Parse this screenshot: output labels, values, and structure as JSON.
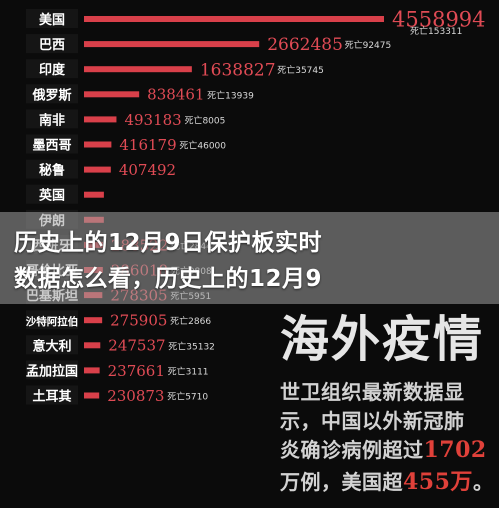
{
  "chart_data": {
    "type": "bar",
    "orientation": "horizontal",
    "title": "",
    "xlabel": "",
    "ylabel": "",
    "deaths_prefix": "死亡",
    "categories": [
      "美国",
      "巴西",
      "印度",
      "俄罗斯",
      "南非",
      "墨西哥",
      "秘鲁",
      "英国",
      "伊朗",
      "西班牙",
      "哥伦比亚",
      "巴基斯坦",
      "沙特阿拉伯",
      "意大利",
      "孟加拉国",
      "土耳其"
    ],
    "cases": [
      4558994,
      2662485,
      1638827,
      838461,
      493183,
      416179,
      407492,
      302295,
      301530,
      288522,
      286018,
      278305,
      275905,
      247537,
      237661,
      230873
    ],
    "cases_labels": [
      "4558994",
      "2662485",
      "1638827",
      "838461",
      "493183",
      "416179",
      "407492",
      "",
      "",
      "288522",
      "286018",
      "278305",
      "275905",
      "247537",
      "237661",
      "230873"
    ],
    "deaths": [
      "153311",
      "92475",
      "35745",
      "13939",
      "8005",
      "46000",
      "",
      "",
      "",
      "28445",
      "9808",
      "5951",
      "2866",
      "35132",
      "3111",
      "5710"
    ],
    "bar_color": "#d9404a",
    "label_color": "#e04b55"
  },
  "overlay": {
    "line1": "历史上的12月9日保护板实时",
    "line2": "数据怎么看，历史上的12月9"
  },
  "caption": {
    "big": "海外疫情",
    "p1": "世卫组织最新数据显",
    "p2": "示，中国以外新冠肺",
    "p3_a": "炎确诊病例超过",
    "p3_num": "1702",
    "p4_a": "万例，美国超",
    "p4_num": "455万",
    "p4_b": "。"
  }
}
